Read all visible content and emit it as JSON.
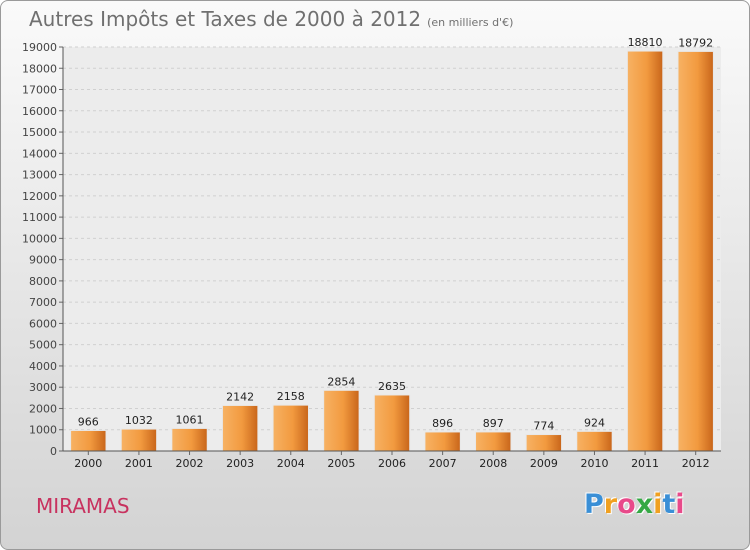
{
  "title": "Autres Impôts et Taxes de 2000 à 2012",
  "subtitle": "(en milliers d'€)",
  "place": "MIRAMAS",
  "logo": {
    "letters": [
      "P",
      "r",
      "o",
      "x",
      "i",
      "t",
      "i"
    ],
    "colors": [
      "#3a8fd6",
      "#f0a020",
      "#e84a8a",
      "#35a845",
      "#f0a020",
      "#3a8fd6",
      "#e84a8a"
    ]
  },
  "colors": {
    "bar": "#f29a3f",
    "bar_dark": "#c8651a",
    "grid": "#d0d0d0"
  },
  "chart_data": {
    "type": "bar",
    "categories": [
      "2000",
      "2001",
      "2002",
      "2003",
      "2004",
      "2005",
      "2006",
      "2007",
      "2008",
      "2009",
      "2010",
      "2011",
      "2012"
    ],
    "values": [
      966,
      1032,
      1061,
      2142,
      2158,
      2854,
      2635,
      896,
      897,
      774,
      924,
      18810,
      18792
    ],
    "ylim": [
      0,
      19000
    ],
    "yticks": [
      0,
      1000,
      2000,
      3000,
      4000,
      5000,
      6000,
      7000,
      8000,
      9000,
      10000,
      11000,
      12000,
      13000,
      14000,
      15000,
      16000,
      17000,
      18000,
      19000
    ],
    "grid": true,
    "data_labels": true
  }
}
